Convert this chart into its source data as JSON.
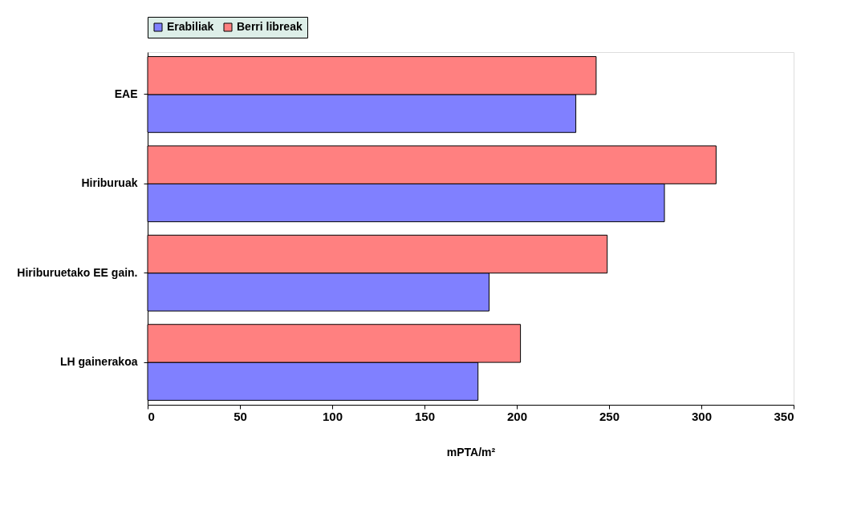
{
  "chart_data": {
    "type": "bar",
    "orientation": "horizontal",
    "xlabel": "mPTA/m²",
    "categories": [
      "EAE",
      "Hiriburuak",
      "Hiriburuetako EE gain.",
      "LH gainerakoa"
    ],
    "series": [
      {
        "name": "Erabiliak",
        "color": "#8080ff",
        "values": [
          232,
          280,
          185,
          179
        ]
      },
      {
        "name": "Berri libreak",
        "color": "#ff8080",
        "values": [
          243,
          308,
          249,
          202
        ]
      }
    ],
    "xlim": [
      0,
      350
    ],
    "xticks": [
      0,
      50,
      100,
      150,
      200,
      250,
      300,
      350
    ],
    "grid": false,
    "legend": "top"
  }
}
